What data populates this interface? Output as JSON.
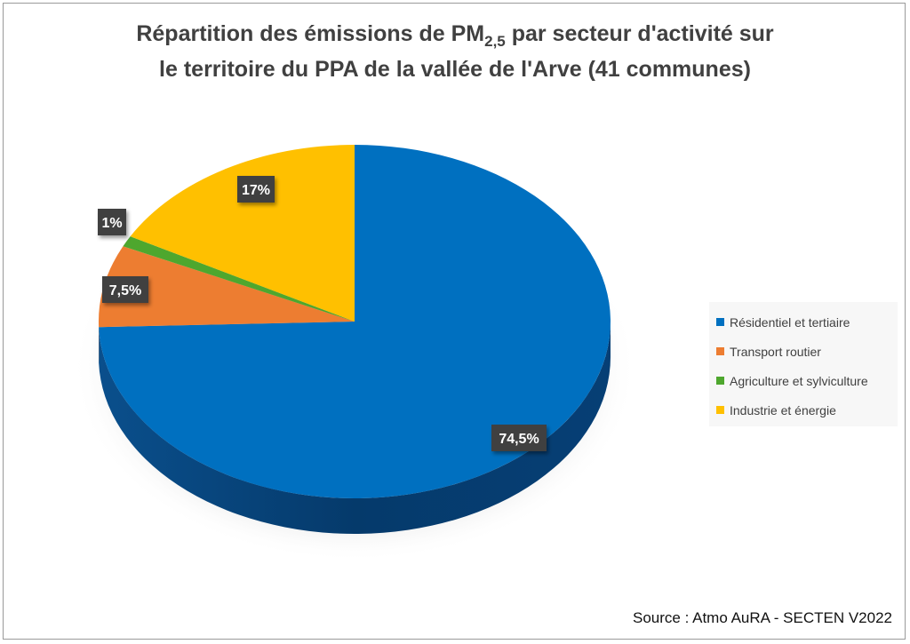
{
  "title": {
    "line1_pre": "Répartition des émissions de PM",
    "line1_sub": "2,5",
    "line1_post": " par secteur d'activité sur",
    "line2": "le territoire du PPA de la vallée de l'Arve (41 communes)"
  },
  "chart_data": {
    "type": "pie",
    "style": "3d",
    "categories": [
      "Résidentiel et tertiaire",
      "Transport routier",
      "Agriculture et sylviculture",
      "Industrie et énergie"
    ],
    "values": [
      74.5,
      7.5,
      1,
      17
    ],
    "data_labels": [
      "74,5%",
      "7,5%",
      "1%",
      "17%"
    ],
    "colors": [
      "#0070C0",
      "#ED7D31",
      "#4EA72E",
      "#FFC000"
    ],
    "legend_position": "right"
  },
  "source": "Source : Atmo AuRA - SECTEN V2022"
}
